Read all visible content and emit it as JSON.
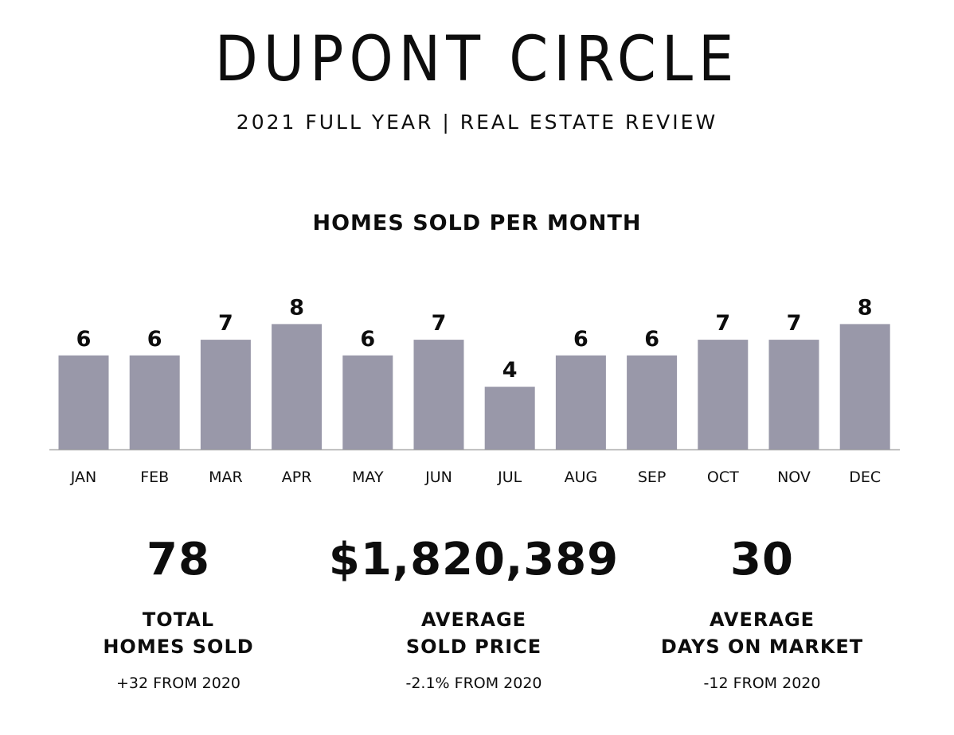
{
  "header": {
    "title": "DUPONT CIRCLE",
    "subtitle": "2021 FULL YEAR | REAL ESTATE REVIEW"
  },
  "chart_data": {
    "type": "bar",
    "title": "HOMES SOLD PER MONTH",
    "categories": [
      "JAN",
      "FEB",
      "MAR",
      "APR",
      "MAY",
      "JUN",
      "JUL",
      "AUG",
      "SEP",
      "OCT",
      "NOV",
      "DEC"
    ],
    "values": [
      6,
      6,
      7,
      8,
      6,
      7,
      4,
      6,
      6,
      7,
      7,
      8
    ],
    "ylim": [
      0,
      8
    ],
    "grid": false,
    "legend": "none",
    "bar_color": "#9998a9"
  },
  "stats": {
    "total": {
      "value": "78",
      "label_line1": "TOTAL",
      "label_line2": "HOMES SOLD",
      "change": "+32 FROM 2020"
    },
    "price": {
      "value": "$1,820,389",
      "label_line1": "AVERAGE",
      "label_line2": "SOLD PRICE",
      "change": "-2.1% FROM 2020"
    },
    "days": {
      "value": "30",
      "label_line1": "AVERAGE",
      "label_line2": "DAYS ON MARKET",
      "change": "-12 FROM 2020"
    }
  }
}
